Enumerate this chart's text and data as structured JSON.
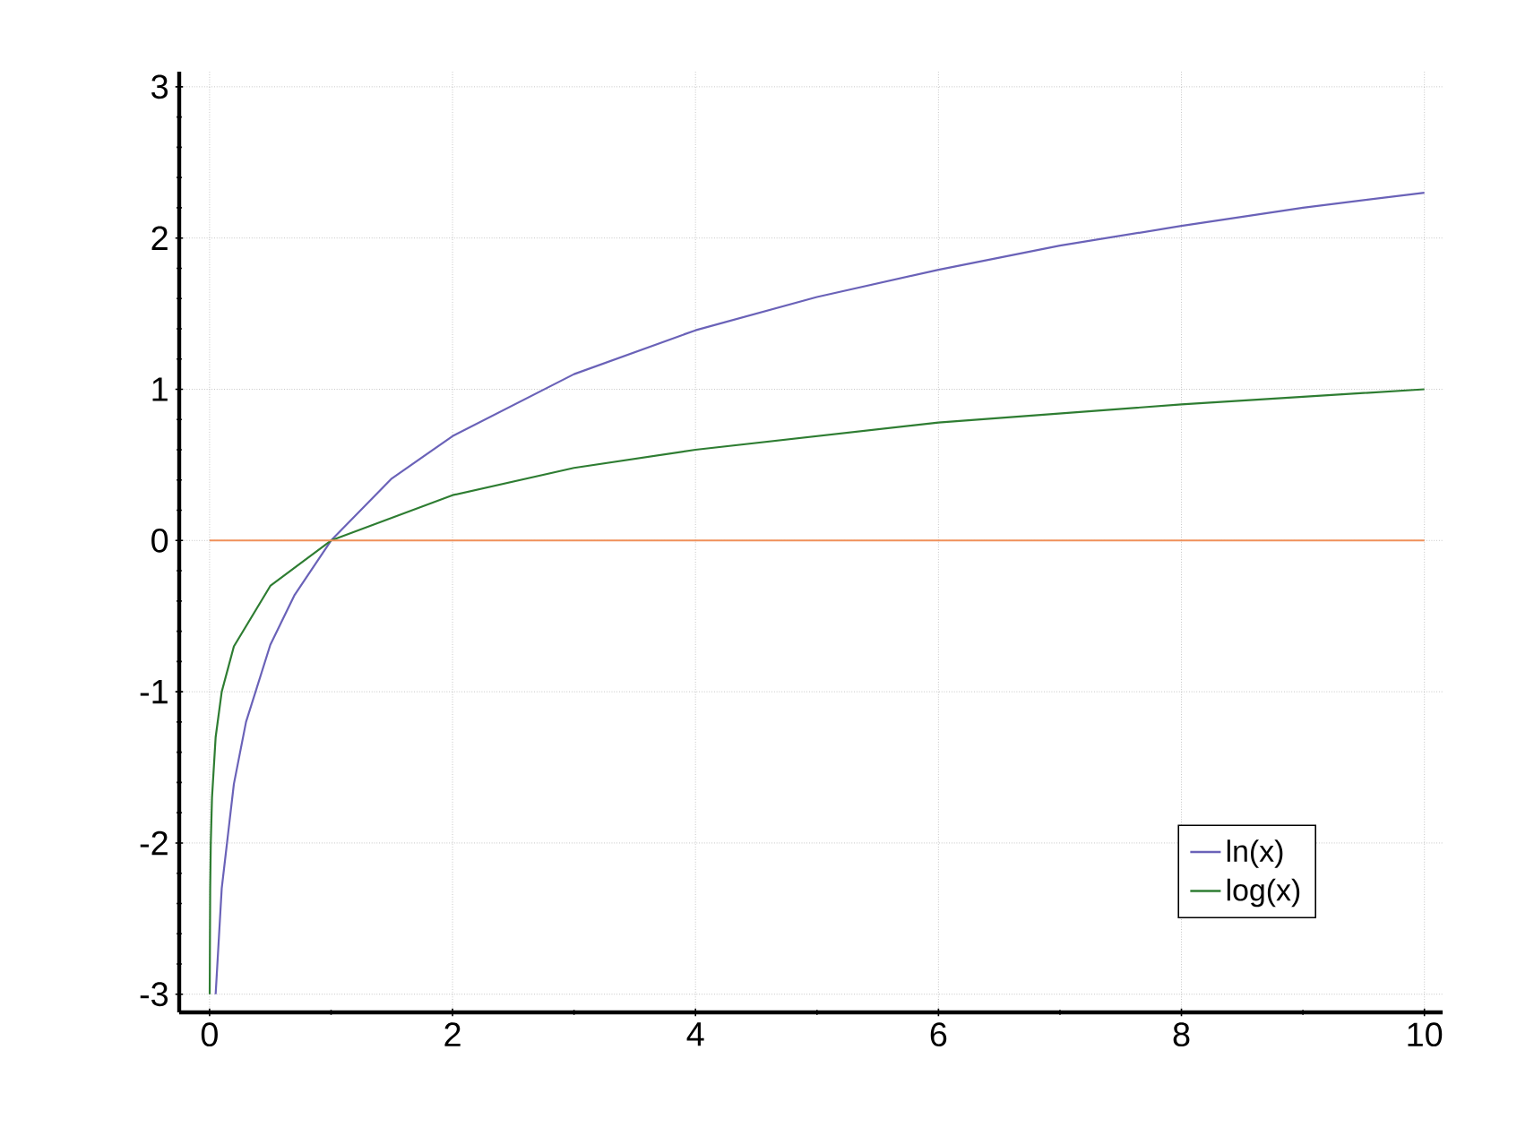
{
  "chart_data": {
    "type": "line",
    "series": [
      {
        "name": "ln(x)",
        "color": "#6a62b8",
        "x": [
          0.05,
          0.1,
          0.2,
          0.3,
          0.5,
          0.7,
          1,
          1.5,
          2,
          3,
          4,
          5,
          6,
          7,
          8,
          9,
          10
        ],
        "values": [
          -3.0,
          -2.3,
          -1.61,
          -1.2,
          -0.69,
          -0.36,
          0,
          0.41,
          0.69,
          1.1,
          1.39,
          1.61,
          1.79,
          1.95,
          2.08,
          2.2,
          2.3
        ]
      },
      {
        "name": "log(x)",
        "color": "#2e7d32",
        "x": [
          0.001,
          0.005,
          0.01,
          0.02,
          0.05,
          0.1,
          0.2,
          0.5,
          1,
          2,
          3,
          4,
          6,
          8,
          10
        ],
        "values": [
          -3.0,
          -2.3,
          -2.0,
          -1.7,
          -1.3,
          -1.0,
          -0.7,
          -0.3,
          0,
          0.3,
          0.48,
          0.6,
          0.78,
          0.9,
          1.0
        ]
      }
    ],
    "xlim": [
      -0.25,
      10.15
    ],
    "ylim": [
      -3.12,
      3.1
    ],
    "xticks": [
      0,
      2,
      4,
      6,
      8,
      10
    ],
    "yticks": [
      -3,
      -2,
      -1,
      0,
      1,
      2,
      3
    ],
    "ref_lines": [
      {
        "axis": "y",
        "value": 0,
        "color": "#f0905a"
      }
    ],
    "grid": true,
    "legend": "bottom right",
    "marker": "none",
    "line_style": "solid"
  }
}
